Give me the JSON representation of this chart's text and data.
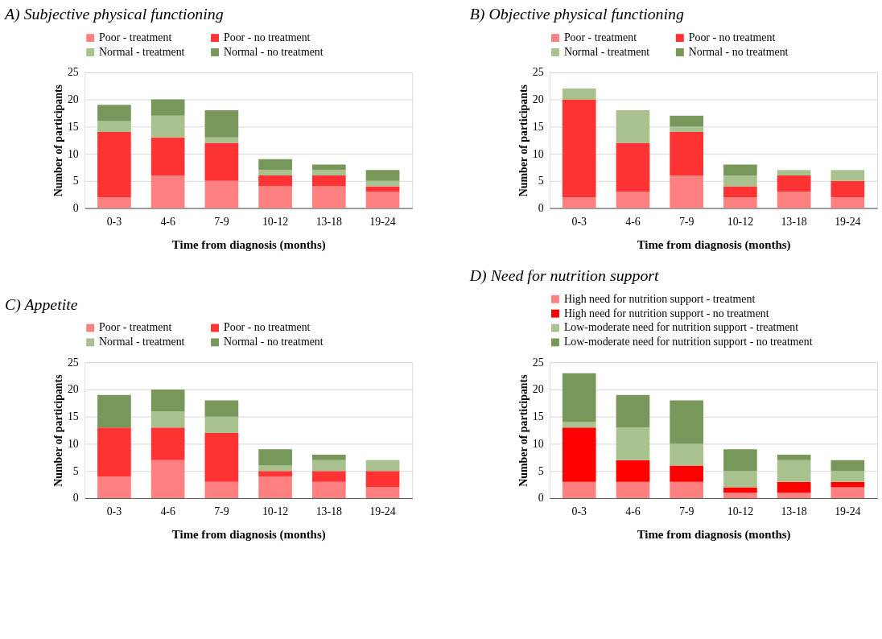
{
  "chart_data": [
    {
      "type": "bar",
      "stacked": true,
      "title": "A)  Subjective physical functioning",
      "xlabel": "Time from diagnosis (months)",
      "ylabel": "Number of participants",
      "categories": [
        "0-3",
        "4-6",
        "7-9",
        "10-12",
        "13-18",
        "19-24"
      ],
      "ylim": [
        0,
        25
      ],
      "yticks": [
        0,
        5,
        10,
        15,
        20,
        25
      ],
      "grid": "y",
      "legend": "top",
      "series": [
        {
          "name": "Poor - treatment",
          "color": "#ff8080",
          "values": [
            2,
            6,
            5,
            4,
            4,
            3
          ]
        },
        {
          "name": "Poor - no treatment",
          "color": "#ff3333",
          "values": [
            12,
            7,
            7,
            2,
            2,
            1
          ]
        },
        {
          "name": "Normal - treatment",
          "color": "#a9c08f",
          "values": [
            2,
            4,
            1,
            1,
            1,
            1
          ]
        },
        {
          "name": "Normal - no treatment",
          "color": "#77985a",
          "values": [
            3,
            3,
            5,
            2,
            1,
            2
          ]
        }
      ]
    },
    {
      "type": "bar",
      "stacked": true,
      "title": "B)  Objective physical functioning",
      "xlabel": "Time from diagnosis (months)",
      "ylabel": "Number of participants",
      "categories": [
        "0-3",
        "4-6",
        "7-9",
        "10-12",
        "13-18",
        "19-24"
      ],
      "ylim": [
        0,
        25
      ],
      "yticks": [
        0,
        5,
        10,
        15,
        20,
        25
      ],
      "grid": "y",
      "legend": "top",
      "series": [
        {
          "name": "Poor - treatment",
          "color": "#ff8080",
          "values": [
            2,
            3,
            6,
            2,
            3,
            2
          ]
        },
        {
          "name": "Poor - no treatment",
          "color": "#ff3333",
          "values": [
            18,
            9,
            8,
            2,
            3,
            3
          ]
        },
        {
          "name": "Normal - treatment",
          "color": "#a9c08f",
          "values": [
            2,
            6,
            1,
            2,
            1,
            2
          ]
        },
        {
          "name": "Normal - no treatment",
          "color": "#77985a",
          "values": [
            0,
            0,
            2,
            2,
            0,
            0
          ]
        }
      ]
    },
    {
      "type": "bar",
      "stacked": true,
      "title": "C)  Appetite",
      "xlabel": "Time from diagnosis (months)",
      "ylabel": "Number of participants",
      "categories": [
        "0-3",
        "4-6",
        "7-9",
        "10-12",
        "13-18",
        "19-24"
      ],
      "ylim": [
        0,
        25
      ],
      "yticks": [
        0,
        5,
        10,
        15,
        20,
        25
      ],
      "grid": "y",
      "legend": "top",
      "series": [
        {
          "name": "Poor - treatment",
          "color": "#ff8080",
          "values": [
            4,
            7,
            3,
            4,
            3,
            2
          ]
        },
        {
          "name": "Poor - no treatment",
          "color": "#ff3333",
          "values": [
            9,
            6,
            9,
            1,
            2,
            3
          ]
        },
        {
          "name": "Normal - treatment",
          "color": "#a9c08f",
          "values": [
            0,
            3,
            3,
            1,
            2,
            2
          ]
        },
        {
          "name": "Normal - no treatment",
          "color": "#77985a",
          "values": [
            6,
            4,
            3,
            3,
            1,
            0
          ]
        }
      ]
    },
    {
      "type": "bar",
      "stacked": true,
      "title": "D)  Need for nutrition support",
      "xlabel": "Time from diagnosis (months)",
      "ylabel": "Number of participants",
      "categories": [
        "0-3",
        "4-6",
        "7-9",
        "10-12",
        "13-18",
        "19-24"
      ],
      "ylim": [
        0,
        25
      ],
      "yticks": [
        0,
        5,
        10,
        15,
        20,
        25
      ],
      "grid": "y",
      "legend": "top",
      "series": [
        {
          "name": "High need for nutrition support - treatment",
          "color": "#ff8080",
          "values": [
            3,
            3,
            3,
            1,
            1,
            2
          ]
        },
        {
          "name": "High need for nutrition support - no treatment",
          "color": "#ff0000",
          "values": [
            10,
            4,
            3,
            1,
            2,
            1
          ]
        },
        {
          "name": "Low-moderate need for nutrition support - treatment",
          "color": "#a9c08f",
          "values": [
            1,
            6,
            4,
            3,
            4,
            2
          ]
        },
        {
          "name": "Low-moderate need for nutrition support - no treatment",
          "color": "#77985a",
          "values": [
            9,
            6,
            8,
            4,
            1,
            2
          ]
        }
      ]
    }
  ]
}
